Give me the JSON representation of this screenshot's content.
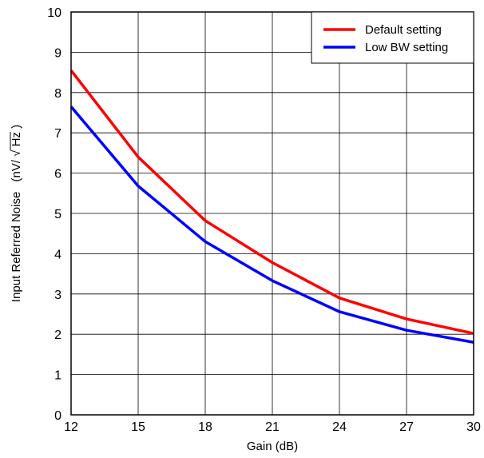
{
  "chart_data": {
    "type": "line",
    "title": "",
    "xlabel": "Gain (dB)",
    "ylabel": "Input Referred Noise",
    "ylabel_unit_prefix": "(nV/",
    "ylabel_unit_radicand": "Hz",
    "ylabel_unit_suffix": ")",
    "xlim": [
      12,
      30
    ],
    "ylim": [
      0,
      10
    ],
    "x_ticks": [
      12,
      15,
      18,
      21,
      24,
      27,
      30
    ],
    "y_ticks": [
      0,
      1,
      2,
      3,
      4,
      5,
      6,
      7,
      8,
      9,
      10
    ],
    "grid": true,
    "legend_position": "top-right",
    "x": [
      12,
      15,
      18,
      21,
      24,
      27,
      30
    ],
    "series": [
      {
        "name": "Default setting",
        "color": "#ff0000",
        "values": [
          8.55,
          6.4,
          4.82,
          3.78,
          2.9,
          2.38,
          2.02
        ]
      },
      {
        "name": "Low BW setting",
        "color": "#0000ff",
        "values": [
          7.65,
          5.68,
          4.3,
          3.33,
          2.56,
          2.1,
          1.8
        ]
      }
    ]
  }
}
